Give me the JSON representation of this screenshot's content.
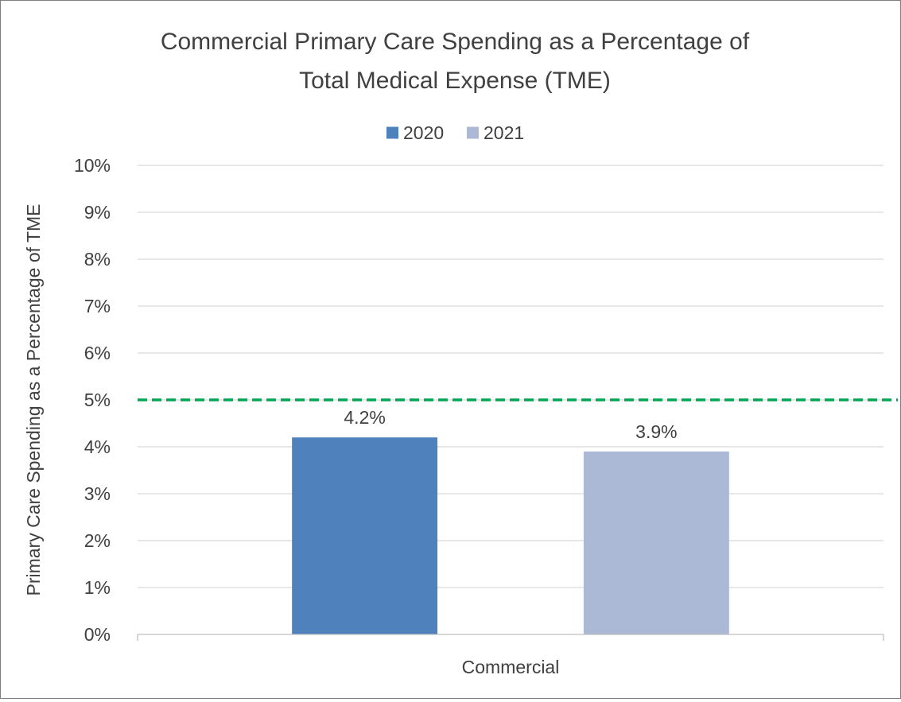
{
  "chart_data": {
    "type": "bar",
    "title_lines": [
      "Commercial Primary Care Spending as a Percentage of",
      "Total Medical Expense (TME)"
    ],
    "xlabel": "",
    "ylabel": "Primary Care Spending as a Percentage of TME",
    "categories": [
      "Commercial"
    ],
    "series": [
      {
        "name": "2020",
        "values": [
          4.2
        ],
        "color": "#4f81bd",
        "label": "4.2%"
      },
      {
        "name": "2021",
        "values": [
          3.9
        ],
        "color": "#abb9d7",
        "label": "3.9%"
      }
    ],
    "ylim": [
      0,
      10
    ],
    "ytick_labels": [
      "0%",
      "1%",
      "2%",
      "3%",
      "4%",
      "5%",
      "6%",
      "7%",
      "8%",
      "9%",
      "10%"
    ],
    "grid": true,
    "legend_position": "top",
    "reference_line": {
      "value": 5,
      "style": "dashed",
      "color": "#00a651"
    },
    "colors": {
      "grid": "#d9d9d9",
      "axis": "#bfbfbf",
      "text": "#404040"
    }
  }
}
